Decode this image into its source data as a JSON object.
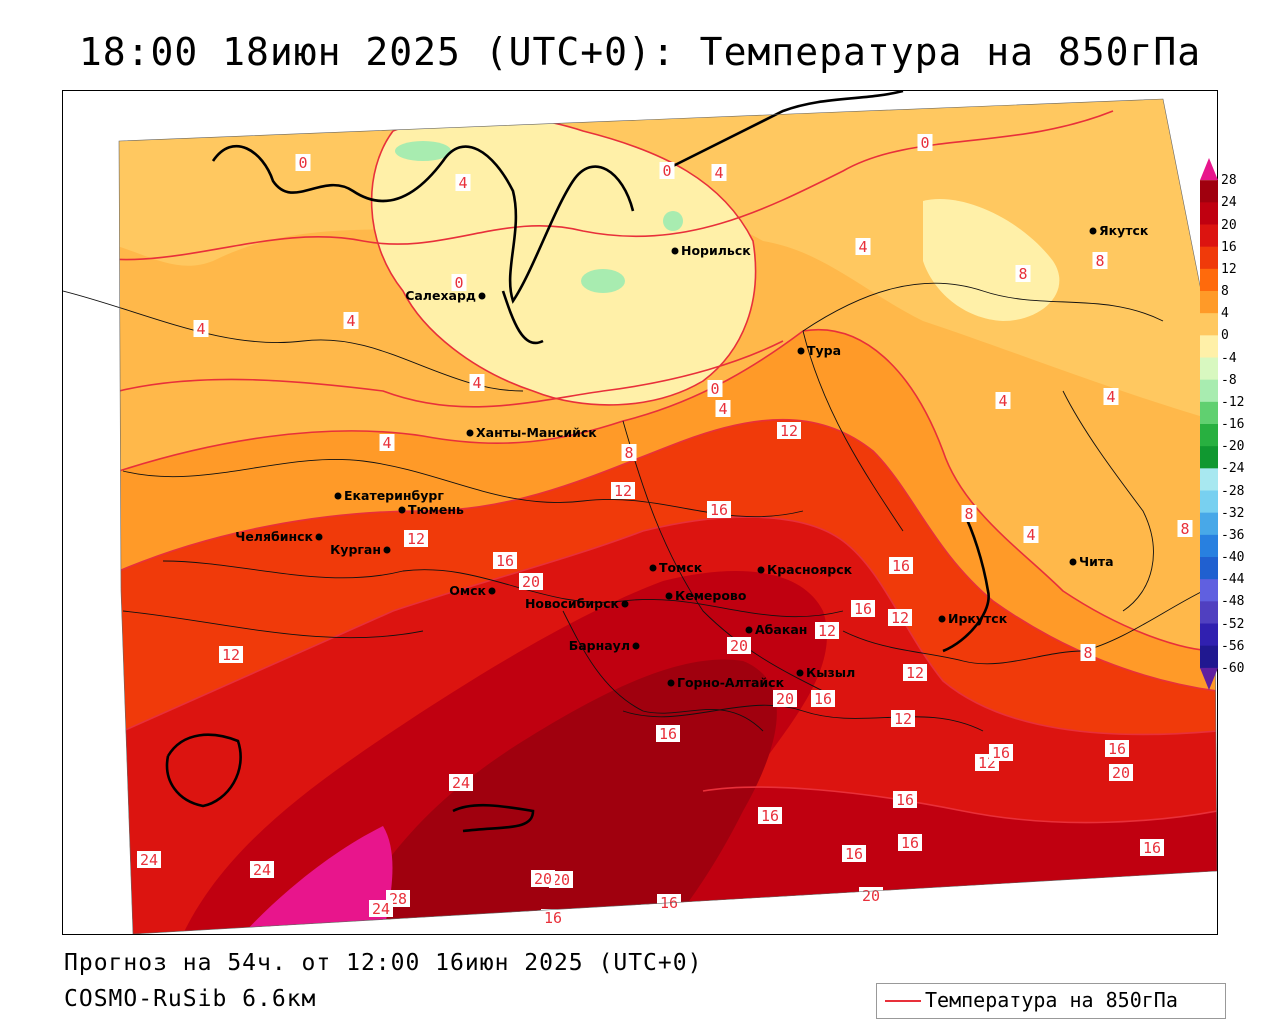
{
  "title": "18:00 18июн 2025 (UTC+0): Температура на 850гПа",
  "footer": {
    "forecast": "Прогноз на 54ч. от 12:00 16июн 2025 (UTC+0)",
    "model": "COSMO-RuSib 6.6км"
  },
  "legend": {
    "label": "Температура на 850гПа",
    "line_color": "#e8303a"
  },
  "colorbar": {
    "ticks": [
      "28",
      "24",
      "20",
      "16",
      "12",
      "8",
      "4",
      "0",
      "-4",
      "-8",
      "-12",
      "-16",
      "-20",
      "-24",
      "-28",
      "-32",
      "-36",
      "-40",
      "-44",
      "-48",
      "-52",
      "-56",
      "-60"
    ],
    "colors": [
      "#e8158c",
      "#a0000e",
      "#c00010",
      "#dc1410",
      "#f03a0a",
      "#ff6a0c",
      "#ff9a28",
      "#ffc860",
      "#fff0a8",
      "#d8f8c0",
      "#a8ecb0",
      "#60d070",
      "#28b040",
      "#109830",
      "#a8e8f0",
      "#78d0f0",
      "#48a8e8",
      "#2880e0",
      "#2060d0",
      "#6060e0",
      "#5040c0",
      "#3020b0",
      "#201890",
      "#6020a0"
    ]
  },
  "cities": [
    {
      "name": "Якутск"
    },
    {
      "name": "Норильск"
    },
    {
      "name": "Салехард"
    },
    {
      "name": "Тура"
    },
    {
      "name": "Ханты-Мансийск"
    },
    {
      "name": "Екатеринбург"
    },
    {
      "name": "Тюмень"
    },
    {
      "name": "Челябинск"
    },
    {
      "name": "Курган"
    },
    {
      "name": "Омск"
    },
    {
      "name": "Томск"
    },
    {
      "name": "Красноярск"
    },
    {
      "name": "Новосибирск"
    },
    {
      "name": "Кемерово"
    },
    {
      "name": "Абакан"
    },
    {
      "name": "Иркутск"
    },
    {
      "name": "Чита"
    },
    {
      "name": "Барнаул"
    },
    {
      "name": "Кызыл"
    },
    {
      "name": "Горно-Алтайск"
    }
  ],
  "contour_labels": [
    "0",
    "0",
    "4",
    "0",
    "4",
    "0",
    "0",
    "4",
    "4",
    "4",
    "4",
    "8",
    "8",
    "4",
    "4",
    "4",
    "4",
    "8",
    "12",
    "8",
    "4",
    "12",
    "16",
    "12",
    "16",
    "20",
    "16",
    "12",
    "8",
    "12",
    "16",
    "12",
    "8",
    "12",
    "20",
    "20",
    "16",
    "16",
    "12",
    "12",
    "16",
    "16",
    "20",
    "24",
    "24",
    "16",
    "16",
    "16",
    "16",
    "20",
    "20",
    "24",
    "16",
    "20",
    "28",
    "24",
    "20",
    "16",
    "16"
  ]
}
